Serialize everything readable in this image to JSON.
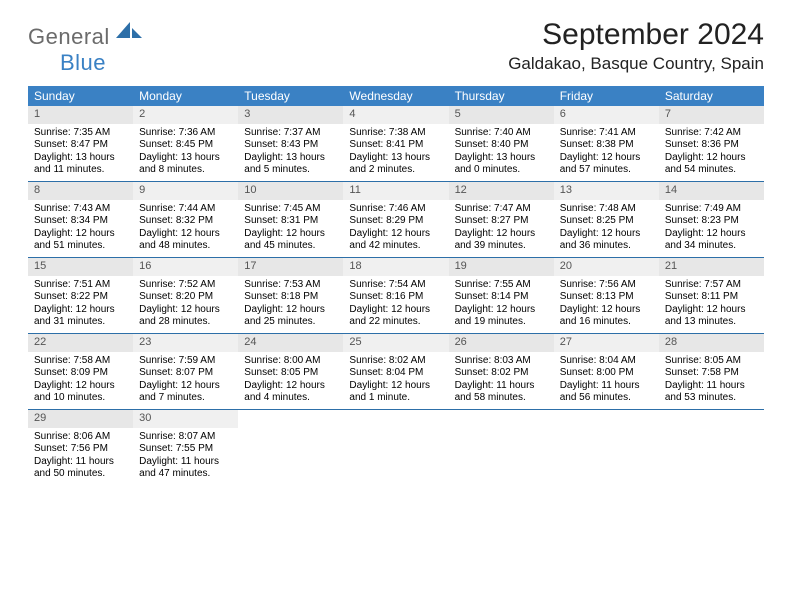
{
  "brand": {
    "general": "General",
    "blue": "Blue"
  },
  "title": "September 2024",
  "location": "Galdakao, Basque Country, Spain",
  "colors": {
    "header_bg": "#3a81c4",
    "rule": "#2d6fa8",
    "daynum_bg": "#e7e7e7",
    "text": "#000000",
    "logo_gray": "#6b6b6b"
  },
  "dayNames": [
    "Sunday",
    "Monday",
    "Tuesday",
    "Wednesday",
    "Thursday",
    "Friday",
    "Saturday"
  ],
  "weeks": [
    [
      {
        "n": "1",
        "sr": "Sunrise: 7:35 AM",
        "ss": "Sunset: 8:47 PM",
        "d1": "Daylight: 13 hours",
        "d2": "and 11 minutes."
      },
      {
        "n": "2",
        "sr": "Sunrise: 7:36 AM",
        "ss": "Sunset: 8:45 PM",
        "d1": "Daylight: 13 hours",
        "d2": "and 8 minutes."
      },
      {
        "n": "3",
        "sr": "Sunrise: 7:37 AM",
        "ss": "Sunset: 8:43 PM",
        "d1": "Daylight: 13 hours",
        "d2": "and 5 minutes."
      },
      {
        "n": "4",
        "sr": "Sunrise: 7:38 AM",
        "ss": "Sunset: 8:41 PM",
        "d1": "Daylight: 13 hours",
        "d2": "and 2 minutes."
      },
      {
        "n": "5",
        "sr": "Sunrise: 7:40 AM",
        "ss": "Sunset: 8:40 PM",
        "d1": "Daylight: 13 hours",
        "d2": "and 0 minutes."
      },
      {
        "n": "6",
        "sr": "Sunrise: 7:41 AM",
        "ss": "Sunset: 8:38 PM",
        "d1": "Daylight: 12 hours",
        "d2": "and 57 minutes."
      },
      {
        "n": "7",
        "sr": "Sunrise: 7:42 AM",
        "ss": "Sunset: 8:36 PM",
        "d1": "Daylight: 12 hours",
        "d2": "and 54 minutes."
      }
    ],
    [
      {
        "n": "8",
        "sr": "Sunrise: 7:43 AM",
        "ss": "Sunset: 8:34 PM",
        "d1": "Daylight: 12 hours",
        "d2": "and 51 minutes."
      },
      {
        "n": "9",
        "sr": "Sunrise: 7:44 AM",
        "ss": "Sunset: 8:32 PM",
        "d1": "Daylight: 12 hours",
        "d2": "and 48 minutes."
      },
      {
        "n": "10",
        "sr": "Sunrise: 7:45 AM",
        "ss": "Sunset: 8:31 PM",
        "d1": "Daylight: 12 hours",
        "d2": "and 45 minutes."
      },
      {
        "n": "11",
        "sr": "Sunrise: 7:46 AM",
        "ss": "Sunset: 8:29 PM",
        "d1": "Daylight: 12 hours",
        "d2": "and 42 minutes."
      },
      {
        "n": "12",
        "sr": "Sunrise: 7:47 AM",
        "ss": "Sunset: 8:27 PM",
        "d1": "Daylight: 12 hours",
        "d2": "and 39 minutes."
      },
      {
        "n": "13",
        "sr": "Sunrise: 7:48 AM",
        "ss": "Sunset: 8:25 PM",
        "d1": "Daylight: 12 hours",
        "d2": "and 36 minutes."
      },
      {
        "n": "14",
        "sr": "Sunrise: 7:49 AM",
        "ss": "Sunset: 8:23 PM",
        "d1": "Daylight: 12 hours",
        "d2": "and 34 minutes."
      }
    ],
    [
      {
        "n": "15",
        "sr": "Sunrise: 7:51 AM",
        "ss": "Sunset: 8:22 PM",
        "d1": "Daylight: 12 hours",
        "d2": "and 31 minutes."
      },
      {
        "n": "16",
        "sr": "Sunrise: 7:52 AM",
        "ss": "Sunset: 8:20 PM",
        "d1": "Daylight: 12 hours",
        "d2": "and 28 minutes."
      },
      {
        "n": "17",
        "sr": "Sunrise: 7:53 AM",
        "ss": "Sunset: 8:18 PM",
        "d1": "Daylight: 12 hours",
        "d2": "and 25 minutes."
      },
      {
        "n": "18",
        "sr": "Sunrise: 7:54 AM",
        "ss": "Sunset: 8:16 PM",
        "d1": "Daylight: 12 hours",
        "d2": "and 22 minutes."
      },
      {
        "n": "19",
        "sr": "Sunrise: 7:55 AM",
        "ss": "Sunset: 8:14 PM",
        "d1": "Daylight: 12 hours",
        "d2": "and 19 minutes."
      },
      {
        "n": "20",
        "sr": "Sunrise: 7:56 AM",
        "ss": "Sunset: 8:13 PM",
        "d1": "Daylight: 12 hours",
        "d2": "and 16 minutes."
      },
      {
        "n": "21",
        "sr": "Sunrise: 7:57 AM",
        "ss": "Sunset: 8:11 PM",
        "d1": "Daylight: 12 hours",
        "d2": "and 13 minutes."
      }
    ],
    [
      {
        "n": "22",
        "sr": "Sunrise: 7:58 AM",
        "ss": "Sunset: 8:09 PM",
        "d1": "Daylight: 12 hours",
        "d2": "and 10 minutes."
      },
      {
        "n": "23",
        "sr": "Sunrise: 7:59 AM",
        "ss": "Sunset: 8:07 PM",
        "d1": "Daylight: 12 hours",
        "d2": "and 7 minutes."
      },
      {
        "n": "24",
        "sr": "Sunrise: 8:00 AM",
        "ss": "Sunset: 8:05 PM",
        "d1": "Daylight: 12 hours",
        "d2": "and 4 minutes."
      },
      {
        "n": "25",
        "sr": "Sunrise: 8:02 AM",
        "ss": "Sunset: 8:04 PM",
        "d1": "Daylight: 12 hours",
        "d2": "and 1 minute."
      },
      {
        "n": "26",
        "sr": "Sunrise: 8:03 AM",
        "ss": "Sunset: 8:02 PM",
        "d1": "Daylight: 11 hours",
        "d2": "and 58 minutes."
      },
      {
        "n": "27",
        "sr": "Sunrise: 8:04 AM",
        "ss": "Sunset: 8:00 PM",
        "d1": "Daylight: 11 hours",
        "d2": "and 56 minutes."
      },
      {
        "n": "28",
        "sr": "Sunrise: 8:05 AM",
        "ss": "Sunset: 7:58 PM",
        "d1": "Daylight: 11 hours",
        "d2": "and 53 minutes."
      }
    ],
    [
      {
        "n": "29",
        "sr": "Sunrise: 8:06 AM",
        "ss": "Sunset: 7:56 PM",
        "d1": "Daylight: 11 hours",
        "d2": "and 50 minutes."
      },
      {
        "n": "30",
        "sr": "Sunrise: 8:07 AM",
        "ss": "Sunset: 7:55 PM",
        "d1": "Daylight: 11 hours",
        "d2": "and 47 minutes."
      },
      null,
      null,
      null,
      null,
      null
    ]
  ]
}
